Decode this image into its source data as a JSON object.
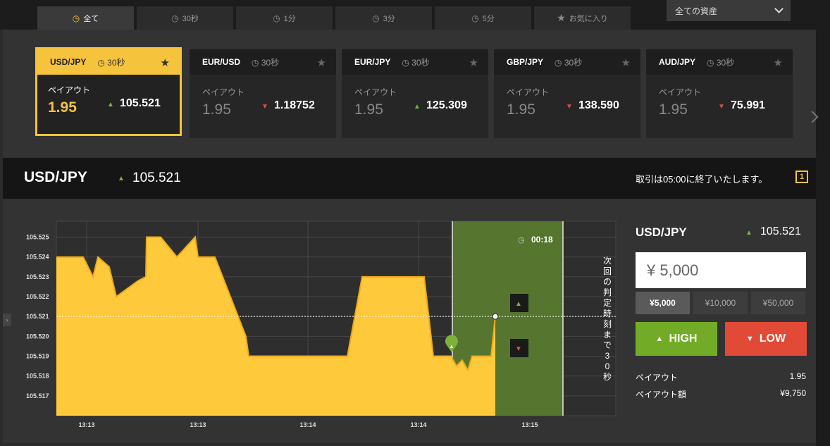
{
  "tabs": [
    {
      "icon": "clock-icon",
      "label": "全て",
      "active": true
    },
    {
      "icon": "clock-icon",
      "label": "30秒",
      "active": false
    },
    {
      "icon": "clock-icon",
      "label": "1分",
      "active": false
    },
    {
      "icon": "clock-icon",
      "label": "3分",
      "active": false
    },
    {
      "icon": "clock-icon",
      "label": "5分",
      "active": false
    },
    {
      "icon": "star-icon",
      "label": "お気に入り",
      "active": false
    }
  ],
  "asset_filter": "全ての資産",
  "cards": [
    {
      "pair": "USD/JPY",
      "time": "30秒",
      "payout_label": "ペイアウト",
      "payout": "1.95",
      "direction": "up",
      "price": "105.521",
      "active": true
    },
    {
      "pair": "EUR/USD",
      "time": "30秒",
      "payout_label": "ペイアウト",
      "payout": "1.95",
      "direction": "down",
      "price": "1.18752",
      "active": false
    },
    {
      "pair": "EUR/JPY",
      "time": "30秒",
      "payout_label": "ペイアウト",
      "payout": "1.95",
      "direction": "up",
      "price": "125.309",
      "active": false
    },
    {
      "pair": "GBP/JPY",
      "time": "30秒",
      "payout_label": "ペイアウト",
      "payout": "1.95",
      "direction": "down",
      "price": "138.590",
      "active": false
    },
    {
      "pair": "AUD/JPY",
      "time": "30秒",
      "payout_label": "ペイアウト",
      "payout": "1.95",
      "direction": "down",
      "price": "75.991",
      "active": false
    }
  ],
  "symbol_bar": {
    "pair": "USD/JPY",
    "price": "105.521",
    "message": "取引は05:00に終了いたします。",
    "count": "1"
  },
  "chart_data": {
    "type": "area",
    "y_ticks": [
      "105.525",
      "105.524",
      "105.523",
      "105.522",
      "105.521",
      "105.520",
      "105.519",
      "105.518",
      "105.517"
    ],
    "x_ticks": [
      "13:13",
      "13:13",
      "13:14",
      "13:14",
      "13:15"
    ],
    "current_level": "105.521",
    "countdown": "00:18",
    "vertical_text": "次回の判定時刻まで30秒",
    "color": "#ffc93c",
    "ylim": [
      105.516,
      105.5258
    ],
    "series": [
      {
        "values": [
          105.524,
          105.524,
          105.523,
          105.524,
          105.5235,
          105.522,
          105.5228,
          105.523,
          105.525,
          105.525,
          105.524,
          105.525,
          105.524,
          105.524,
          105.522,
          105.52,
          105.519,
          105.519,
          105.519,
          105.519,
          105.523,
          105.523,
          105.523,
          105.519,
          105.519,
          105.5185,
          105.5188,
          105.5183,
          105.519,
          105.519,
          105.521
        ]
      }
    ]
  },
  "panel": {
    "pair": "USD/JPY",
    "price": "105.521",
    "amount": "¥ 5,000",
    "quick_amounts": [
      "¥5,000",
      "¥10,000",
      "¥50,000"
    ],
    "high_label": "HIGH",
    "low_label": "LOW",
    "payout_label": "ペイアウト",
    "payout_value": "1.95",
    "payout_amount_label": "ペイアウト額",
    "payout_amount_value": "¥9,750"
  },
  "colors": {
    "accent": "#f6c33c",
    "up": "#7fb03c",
    "down": "#e04e39",
    "high": "#72ac27",
    "low": "#e14a36"
  }
}
